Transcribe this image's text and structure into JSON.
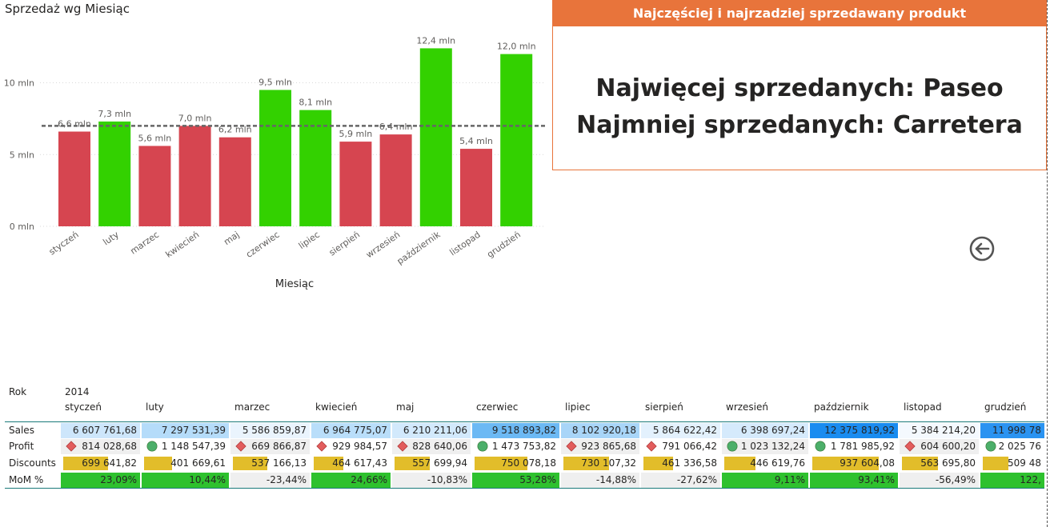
{
  "chart": {
    "title": "Sprzedaż wg Miesiąc",
    "xlabel": "Miesiąc"
  },
  "chart_data": {
    "type": "bar",
    "title": "Sprzedaż wg Miesiąc",
    "xlabel": "Miesiąc",
    "ylabel": "",
    "ylim": [
      0,
      13
    ],
    "y_ticks": [
      {
        "value": 0,
        "label": "0 mln"
      },
      {
        "value": 5,
        "label": "5 mln"
      },
      {
        "value": 10,
        "label": "10 mln"
      }
    ],
    "average_line": 7.0,
    "grid": true,
    "categories": [
      "styczeń",
      "luty",
      "marzec",
      "kwiecień",
      "maj",
      "czerwiec",
      "lipiec",
      "sierpień",
      "wrzesień",
      "październik",
      "listopad",
      "grudzień"
    ],
    "values": [
      6.6,
      7.3,
      5.6,
      7.0,
      6.2,
      9.5,
      8.1,
      5.9,
      6.4,
      12.4,
      5.4,
      12.0
    ],
    "value_labels": [
      "6,6 mln",
      "7,3 mln",
      "5,6 mln",
      "7,0 mln",
      "6,2 mln",
      "9,5 mln",
      "8,1 mln",
      "5,9 mln",
      "6,4 mln",
      "12,4 mln",
      "5,4 mln",
      "12,0 mln"
    ],
    "bar_colors": [
      "#d64550",
      "#33d100",
      "#d64550",
      "#d64550",
      "#d64550",
      "#33d100",
      "#33d100",
      "#d64550",
      "#d64550",
      "#33d100",
      "#d64550",
      "#33d100"
    ]
  },
  "card": {
    "header": "Najczęściej i najrzadziej sprzedawany produkt",
    "line1": "Najwięcej sprzedanych: Paseo",
    "line2": "Najmniej sprzedanych: Carretera"
  },
  "matrix": {
    "rok_label": "Rok",
    "year": "2014",
    "months": [
      "styczeń",
      "luty",
      "marzec",
      "kwiecień",
      "maj",
      "czerwiec",
      "lipiec",
      "sierpień",
      "wrzesień",
      "październik",
      "listopad",
      "grudzień"
    ],
    "rows": [
      {
        "label": "Sales",
        "values": [
          "6 607 761,68",
          "7 297 531,39",
          "5 586 859,87",
          "6 964 775,07",
          "6 210 211,06",
          "9 518 893,82",
          "8 102 920,18",
          "5 864 622,42",
          "6 398 697,24",
          "12 375 819,92",
          "5 384 214,20",
          "11 998 78"
        ],
        "bg": [
          "#cde6fb",
          "#b5dcfa",
          "#eaf4fd",
          "#b9defa",
          "#d2e9fc",
          "#6cb9f4",
          "#a8d5f8",
          "#e3f1fd",
          "#d5eafc",
          "#1a8cf0",
          "#f4f9fe",
          "#2a93f1"
        ]
      },
      {
        "label": "Profit",
        "values": [
          "814 028,68",
          "1 148 547,39",
          "669 866,87",
          "929 984,57",
          "828 640,06",
          "1 473 753,82",
          "923 865,68",
          "791 066,42",
          "1 023 132,24",
          "1 781 985,92",
          "604 600,20",
          "2 025 76"
        ],
        "kpi": [
          "diamond",
          "circle",
          "diamond",
          "diamond",
          "diamond",
          "circle",
          "diamond",
          "diamond",
          "circle",
          "circle",
          "diamond",
          "circle"
        ]
      },
      {
        "label": "Discounts",
        "values": [
          "699 641,82",
          "401 669,61",
          "537 166,13",
          "464 617,43",
          "557 699,94",
          "750 078,18",
          "730 107,32",
          "461 336,58",
          "446 619,76",
          "937 604,08",
          "563 695,80",
          "509 48"
        ],
        "fill": [
          0.6,
          0.34,
          0.46,
          0.4,
          0.48,
          0.64,
          0.62,
          0.4,
          0.38,
          0.8,
          0.48,
          0.43
        ]
      },
      {
        "label": "MoM %",
        "values": [
          "23,09%",
          "10,44%",
          "-23,44%",
          "24,66%",
          "-10,83%",
          "53,28%",
          "-14,88%",
          "-27,62%",
          "9,11%",
          "93,41%",
          "-56,49%",
          "122,"
        ],
        "positive": [
          true,
          true,
          false,
          true,
          false,
          true,
          false,
          false,
          true,
          true,
          false,
          true
        ]
      }
    ]
  },
  "colors": {
    "accent_orange": "#e8743b",
    "bar_red": "#d64550",
    "bar_green": "#33d100",
    "kpi_red": "#e25d5d",
    "kpi_green": "#4caf6a",
    "discount_yellow": "#e2bd2a",
    "mom_green": "#2ec12e",
    "mom_grey": "#efefef"
  },
  "icons": {
    "back": "circle-arrow-left-icon"
  }
}
